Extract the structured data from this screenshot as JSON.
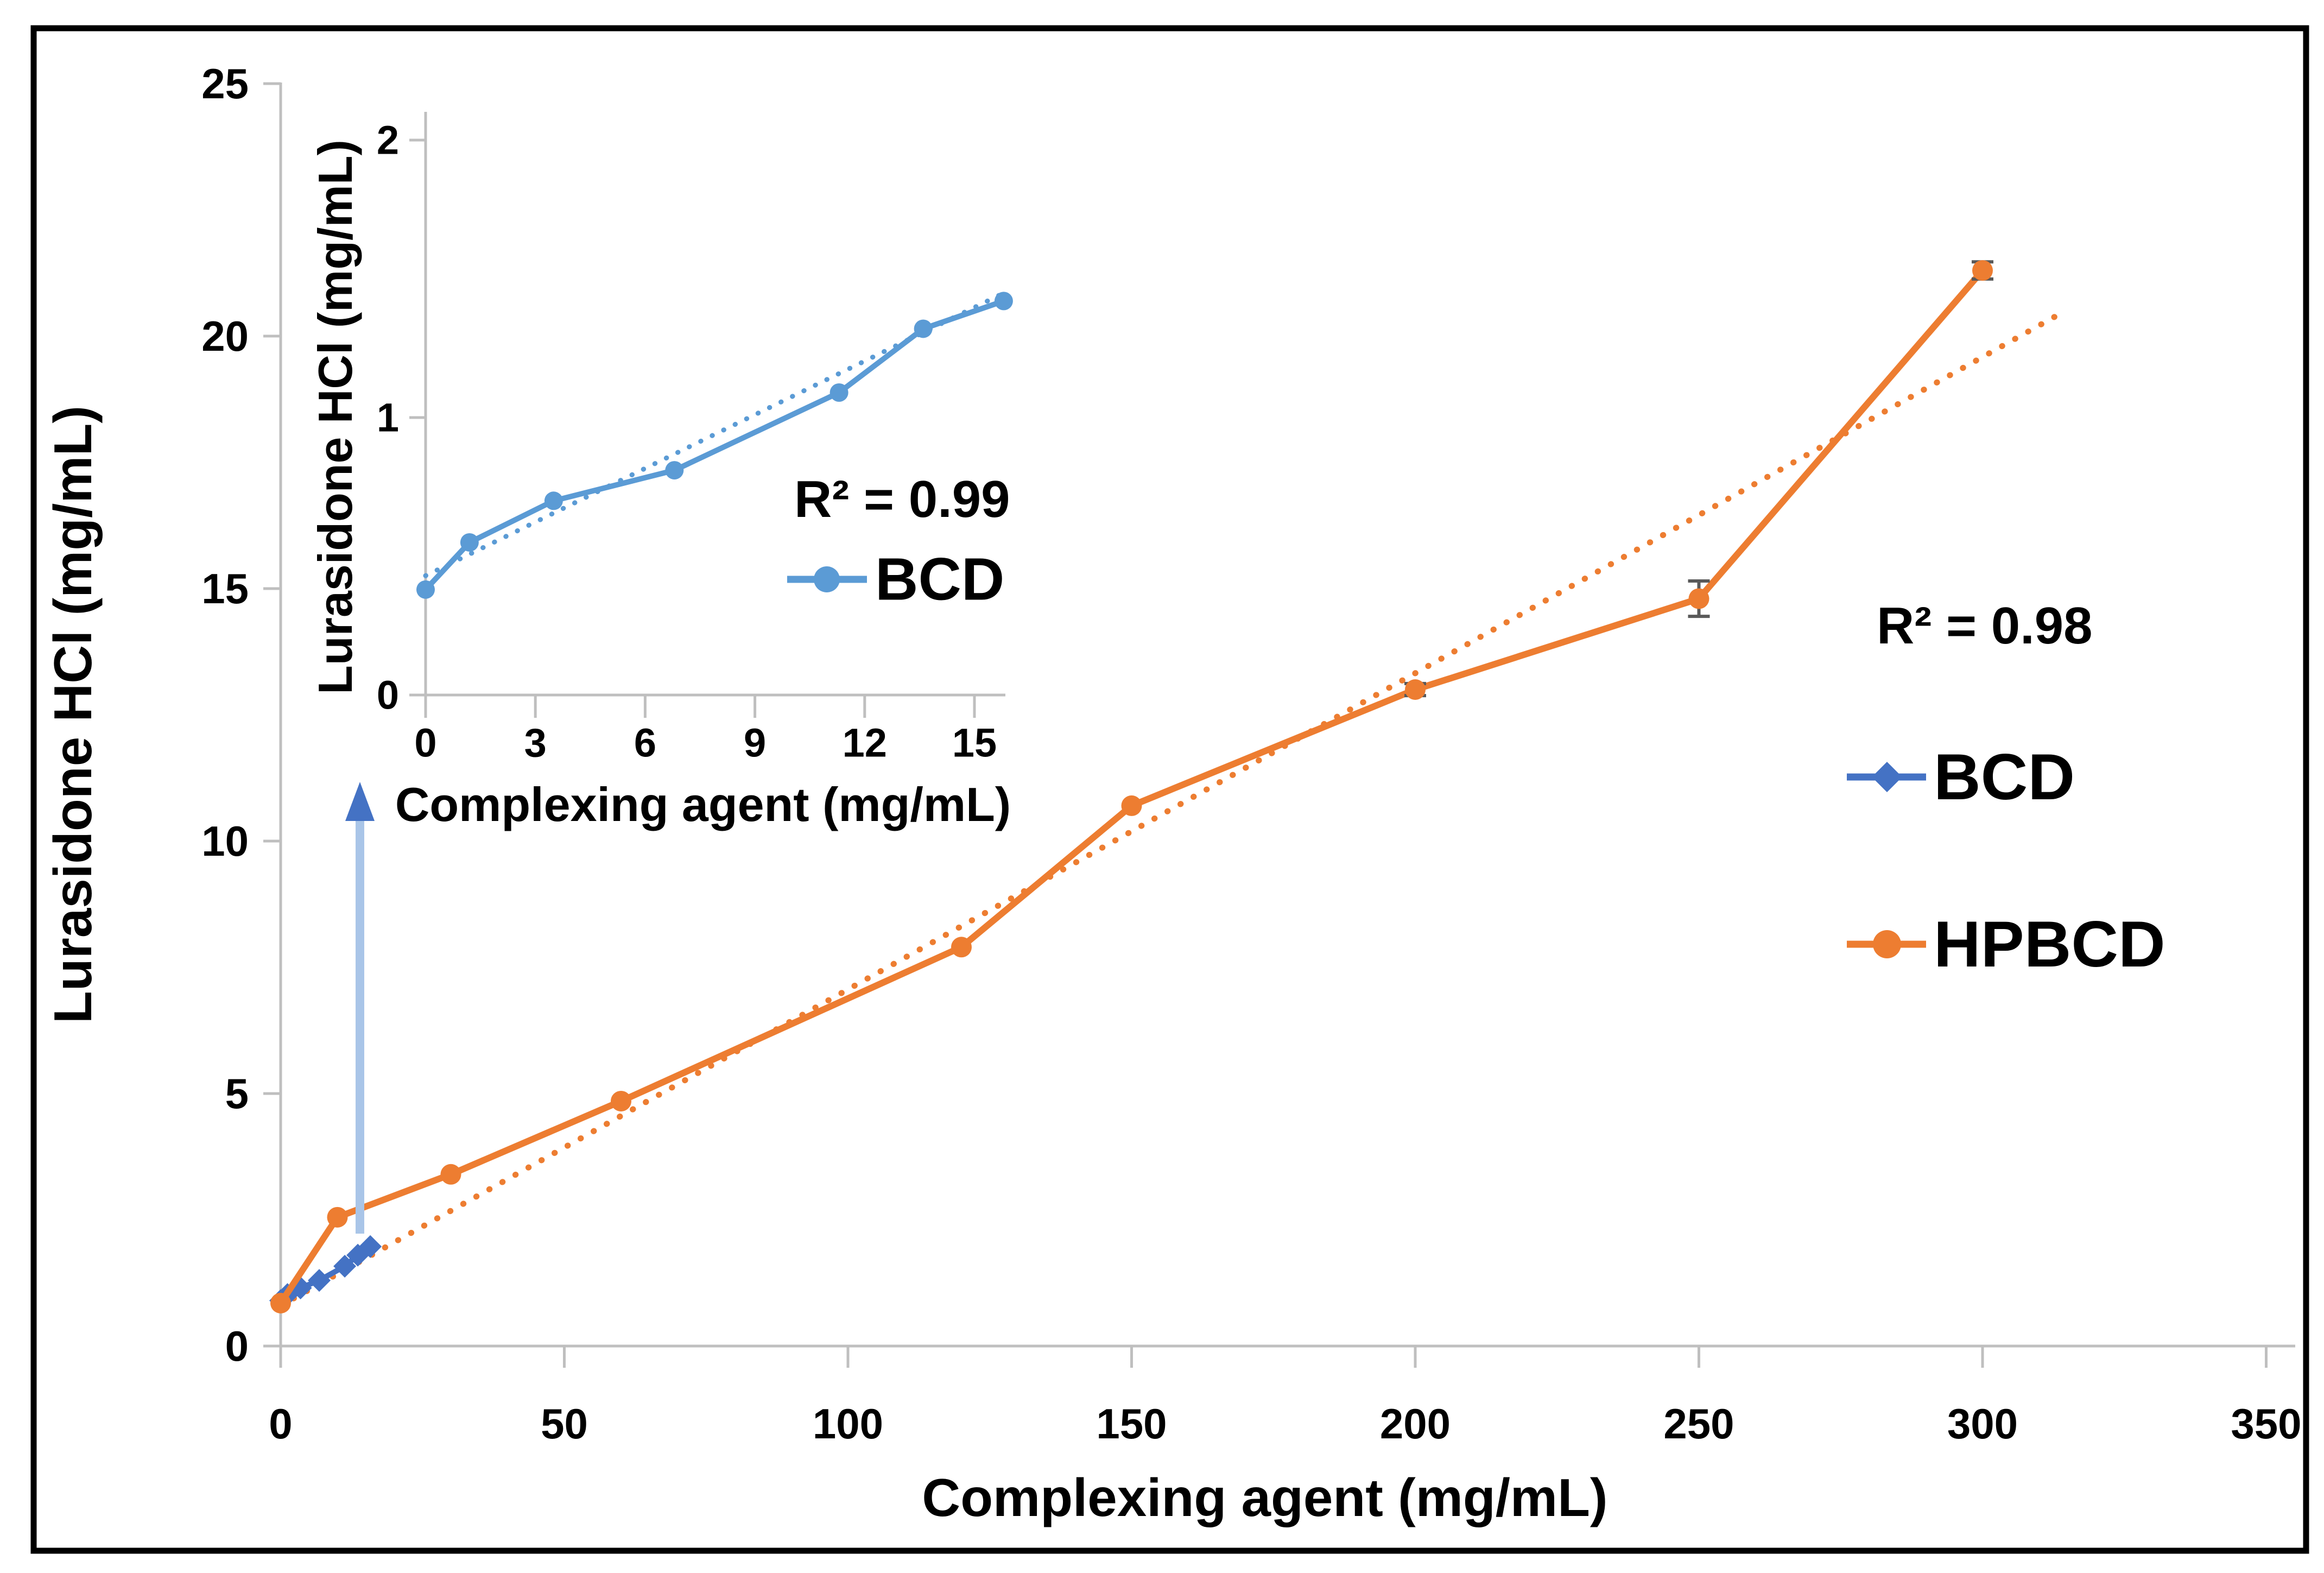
{
  "colors": {
    "frame": "#000000",
    "axis": "#BFBFBF",
    "text": "#000000",
    "bcd_main": "#4472C4",
    "bcd_inset": "#5B9BD5",
    "hpbcd": "#ED7D31",
    "error_bar": "#595959",
    "arrow_shaft": "#A9C5E8",
    "arrow_head": "#4472C4"
  },
  "chart_data": [
    {
      "id": "main",
      "type": "line",
      "title": "",
      "xlabel": "Complexing agent (mg/mL)",
      "ylabel": "Lurasidone HCl (mg/mL)",
      "xlim": [
        0,
        350
      ],
      "ylim": [
        0,
        25
      ],
      "xticks": [
        0,
        50,
        100,
        150,
        200,
        250,
        300,
        350
      ],
      "yticks": [
        0,
        5,
        10,
        15,
        20,
        25
      ],
      "grid": false,
      "legend_position": "right-middle",
      "annotation": "R² = 0.98",
      "series": [
        {
          "name": "BCD",
          "color": "#4472C4",
          "marker": "diamond",
          "x": [
            0,
            1.2,
            3.5,
            6.8,
            11.3,
            13.6,
            15.8
          ],
          "y": [
            0.9,
            1.02,
            1.15,
            1.3,
            1.58,
            1.8,
            1.97
          ]
        },
        {
          "name": "HPBCD",
          "color": "#ED7D31",
          "marker": "circle",
          "x": [
            0,
            10,
            30,
            60,
            120,
            150,
            200,
            250,
            300
          ],
          "y": [
            0.85,
            2.55,
            3.4,
            4.85,
            7.9,
            10.7,
            13.0,
            14.8,
            21.3
          ],
          "y_err": [
            0,
            0,
            0,
            0,
            0,
            0,
            0.12,
            0.35,
            0.17
          ]
        }
      ],
      "trendline": {
        "series": "HPBCD",
        "style": "dotted",
        "color": "#ED7D31",
        "x1": 0,
        "y1": 0.8,
        "x2": 313,
        "y2": 20.4
      }
    },
    {
      "id": "inset",
      "type": "line",
      "title": "",
      "xlabel": "Complexing agent (mg/mL)",
      "ylabel": "Lurasidone HCl (mg/mL)",
      "xlim": [
        0,
        16.5
      ],
      "ylim": [
        0,
        2
      ],
      "xticks": [
        0,
        3,
        6,
        9,
        12,
        15
      ],
      "yticks": [
        0,
        1,
        2
      ],
      "grid": false,
      "legend_position": "inside-right",
      "annotation": "R² = 0.99",
      "series": [
        {
          "name": "BCD",
          "color": "#5B9BD5",
          "marker": "circle",
          "x": [
            0,
            1.2,
            3.5,
            6.8,
            11.3,
            13.6,
            15.8
          ],
          "y": [
            0.38,
            0.55,
            0.7,
            0.81,
            1.09,
            1.32,
            1.42
          ]
        }
      ],
      "trendline": {
        "series": "BCD",
        "style": "dotted",
        "color": "#5B9BD5",
        "x1": 0,
        "y1": 0.43,
        "x2": 15.9,
        "y2": 1.455
      }
    }
  ],
  "annotations": {
    "inset_arrow": {
      "direction": "up"
    }
  }
}
